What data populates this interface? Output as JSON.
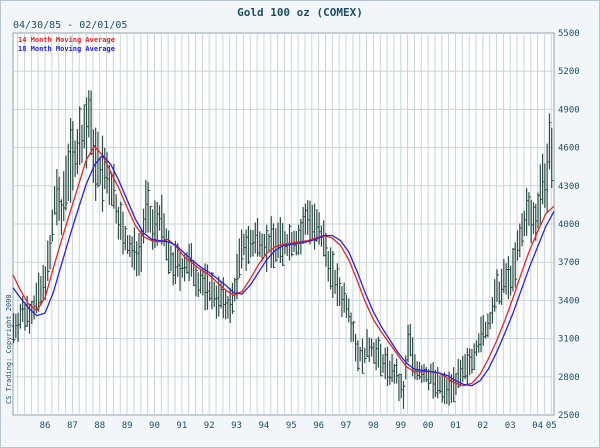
{
  "chart_data": {
    "type": "bar",
    "title": "Gold 100 oz (COMEX)",
    "date_range": "04/30/85 - 02/01/05",
    "copyright": "CS Trading: Copyright 2000",
    "y_axis_position": "right",
    "ylim": [
      2500,
      5500
    ],
    "y_ticks": [
      2500,
      2800,
      3100,
      3400,
      3700,
      4000,
      4300,
      4600,
      4900,
      5200,
      5500
    ],
    "x_range": [
      1985.33,
      2005.1
    ],
    "x_ticks": [
      {
        "label": "86",
        "year": 1986.5
      },
      {
        "label": "87",
        "year": 1987.5
      },
      {
        "label": "88",
        "year": 1988.5
      },
      {
        "label": "89",
        "year": 1989.5
      },
      {
        "label": "90",
        "year": 1990.5
      },
      {
        "label": "91",
        "year": 1991.5
      },
      {
        "label": "92",
        "year": 1992.5
      },
      {
        "label": "93",
        "year": 1993.5
      },
      {
        "label": "94",
        "year": 1994.5
      },
      {
        "label": "95",
        "year": 1995.5
      },
      {
        "label": "96",
        "year": 1996.5
      },
      {
        "label": "97",
        "year": 1997.5
      },
      {
        "label": "98",
        "year": 1998.5
      },
      {
        "label": "99",
        "year": 1999.5
      },
      {
        "label": "00",
        "year": 2000.5
      },
      {
        "label": "01",
        "year": 2001.5
      },
      {
        "label": "02",
        "year": 2002.5
      },
      {
        "label": "03",
        "year": 2003.5
      },
      {
        "label": "04",
        "year": 2004.5
      },
      {
        "label": "05",
        "year": 2005.0
      }
    ],
    "series": [
      {
        "name": "14 Month Moving Average",
        "color": "#ee2222",
        "points": [
          [
            1985.33,
            3600
          ],
          [
            1985.6,
            3480
          ],
          [
            1985.9,
            3370
          ],
          [
            1986.2,
            3320
          ],
          [
            1986.5,
            3420
          ],
          [
            1986.8,
            3650
          ],
          [
            1987.1,
            3870
          ],
          [
            1987.4,
            4080
          ],
          [
            1987.7,
            4290
          ],
          [
            1988.0,
            4500
          ],
          [
            1988.3,
            4610
          ],
          [
            1988.6,
            4540
          ],
          [
            1988.9,
            4410
          ],
          [
            1989.2,
            4280
          ],
          [
            1989.5,
            4130
          ],
          [
            1989.8,
            3990
          ],
          [
            1990.1,
            3900
          ],
          [
            1990.4,
            3870
          ],
          [
            1990.7,
            3860
          ],
          [
            1991.0,
            3880
          ],
          [
            1991.3,
            3820
          ],
          [
            1991.6,
            3740
          ],
          [
            1991.9,
            3690
          ],
          [
            1992.2,
            3640
          ],
          [
            1992.5,
            3600
          ],
          [
            1992.8,
            3540
          ],
          [
            1993.1,
            3480
          ],
          [
            1993.4,
            3440
          ],
          [
            1993.7,
            3470
          ],
          [
            1994.0,
            3570
          ],
          [
            1994.3,
            3680
          ],
          [
            1994.6,
            3770
          ],
          [
            1994.9,
            3820
          ],
          [
            1995.2,
            3840
          ],
          [
            1995.5,
            3850
          ],
          [
            1995.8,
            3860
          ],
          [
            1996.1,
            3870
          ],
          [
            1996.4,
            3890
          ],
          [
            1996.7,
            3910
          ],
          [
            1997.0,
            3890
          ],
          [
            1997.3,
            3830
          ],
          [
            1997.6,
            3720
          ],
          [
            1997.9,
            3560
          ],
          [
            1998.2,
            3390
          ],
          [
            1998.5,
            3250
          ],
          [
            1998.8,
            3150
          ],
          [
            1999.1,
            3060
          ],
          [
            1999.4,
            2970
          ],
          [
            1999.7,
            2880
          ],
          [
            2000.0,
            2840
          ],
          [
            2000.3,
            2840
          ],
          [
            2000.6,
            2840
          ],
          [
            2000.9,
            2830
          ],
          [
            2001.2,
            2790
          ],
          [
            2001.5,
            2750
          ],
          [
            2001.8,
            2730
          ],
          [
            2002.1,
            2750
          ],
          [
            2002.4,
            2820
          ],
          [
            2002.7,
            2940
          ],
          [
            2003.0,
            3080
          ],
          [
            2003.3,
            3240
          ],
          [
            2003.6,
            3420
          ],
          [
            2003.9,
            3610
          ],
          [
            2004.2,
            3790
          ],
          [
            2004.5,
            3940
          ],
          [
            2004.8,
            4080
          ],
          [
            2005.1,
            4140
          ]
        ]
      },
      {
        "name": "18 Month Moving Average",
        "color": "#2222ee",
        "points": [
          [
            1985.33,
            3500
          ],
          [
            1985.6,
            3420
          ],
          [
            1985.9,
            3340
          ],
          [
            1986.2,
            3280
          ],
          [
            1986.5,
            3300
          ],
          [
            1986.8,
            3460
          ],
          [
            1987.1,
            3680
          ],
          [
            1987.4,
            3900
          ],
          [
            1987.7,
            4110
          ],
          [
            1988.0,
            4310
          ],
          [
            1988.3,
            4460
          ],
          [
            1988.6,
            4540
          ],
          [
            1988.9,
            4470
          ],
          [
            1989.2,
            4340
          ],
          [
            1989.5,
            4190
          ],
          [
            1989.8,
            4040
          ],
          [
            1990.1,
            3930
          ],
          [
            1990.4,
            3880
          ],
          [
            1990.7,
            3870
          ],
          [
            1991.0,
            3860
          ],
          [
            1991.3,
            3830
          ],
          [
            1991.6,
            3770
          ],
          [
            1991.9,
            3710
          ],
          [
            1992.2,
            3660
          ],
          [
            1992.5,
            3620
          ],
          [
            1992.8,
            3570
          ],
          [
            1993.1,
            3520
          ],
          [
            1993.4,
            3460
          ],
          [
            1993.7,
            3450
          ],
          [
            1994.0,
            3520
          ],
          [
            1994.3,
            3620
          ],
          [
            1994.6,
            3720
          ],
          [
            1994.9,
            3790
          ],
          [
            1995.2,
            3830
          ],
          [
            1995.5,
            3840
          ],
          [
            1995.8,
            3850
          ],
          [
            1996.1,
            3860
          ],
          [
            1996.4,
            3880
          ],
          [
            1996.7,
            3910
          ],
          [
            1997.0,
            3910
          ],
          [
            1997.3,
            3870
          ],
          [
            1997.6,
            3780
          ],
          [
            1997.9,
            3630
          ],
          [
            1998.2,
            3460
          ],
          [
            1998.5,
            3310
          ],
          [
            1998.8,
            3190
          ],
          [
            1999.1,
            3090
          ],
          [
            1999.4,
            2990
          ],
          [
            1999.7,
            2910
          ],
          [
            2000.0,
            2860
          ],
          [
            2000.3,
            2850
          ],
          [
            2000.6,
            2840
          ],
          [
            2000.9,
            2830
          ],
          [
            2001.2,
            2810
          ],
          [
            2001.5,
            2770
          ],
          [
            2001.8,
            2740
          ],
          [
            2002.1,
            2730
          ],
          [
            2002.4,
            2770
          ],
          [
            2002.7,
            2860
          ],
          [
            2003.0,
            2990
          ],
          [
            2003.3,
            3140
          ],
          [
            2003.6,
            3300
          ],
          [
            2003.9,
            3480
          ],
          [
            2004.2,
            3660
          ],
          [
            2004.5,
            3820
          ],
          [
            2004.8,
            3980
          ],
          [
            2005.1,
            4100
          ]
        ]
      },
      {
        "name": "Price",
        "color": "#2b4d44",
        "anchors": [
          [
            1985.33,
            3180
          ],
          [
            1985.7,
            3300
          ],
          [
            1986.0,
            3320
          ],
          [
            1986.4,
            3480
          ],
          [
            1986.7,
            3780
          ],
          [
            1986.9,
            4280
          ],
          [
            1987.1,
            4050
          ],
          [
            1987.3,
            4450
          ],
          [
            1987.6,
            4550
          ],
          [
            1987.9,
            4700
          ],
          [
            1988.1,
            4820
          ],
          [
            1988.4,
            4430
          ],
          [
            1988.7,
            4380
          ],
          [
            1989.0,
            4250
          ],
          [
            1989.2,
            4050
          ],
          [
            1989.4,
            3880
          ],
          [
            1989.7,
            3770
          ],
          [
            1990.0,
            3800
          ],
          [
            1990.2,
            4180
          ],
          [
            1990.4,
            3950
          ],
          [
            1990.7,
            4080
          ],
          [
            1991.0,
            3750
          ],
          [
            1991.2,
            3680
          ],
          [
            1991.5,
            3660
          ],
          [
            1991.8,
            3680
          ],
          [
            1992.1,
            3560
          ],
          [
            1992.4,
            3500
          ],
          [
            1992.7,
            3450
          ],
          [
            1993.0,
            3400
          ],
          [
            1993.3,
            3340
          ],
          [
            1993.6,
            3700
          ],
          [
            1993.8,
            3850
          ],
          [
            1994.0,
            3820
          ],
          [
            1994.3,
            3890
          ],
          [
            1994.6,
            3830
          ],
          [
            1994.9,
            3860
          ],
          [
            1995.2,
            3840
          ],
          [
            1995.5,
            3860
          ],
          [
            1995.8,
            3870
          ],
          [
            1996.1,
            4080
          ],
          [
            1996.4,
            3950
          ],
          [
            1996.7,
            3850
          ],
          [
            1997.0,
            3600
          ],
          [
            1997.3,
            3450
          ],
          [
            1997.6,
            3350
          ],
          [
            1997.9,
            3000
          ],
          [
            1998.1,
            2950
          ],
          [
            1998.4,
            3050
          ],
          [
            1998.7,
            2950
          ],
          [
            1999.0,
            2880
          ],
          [
            1999.3,
            2820
          ],
          [
            1999.6,
            2650
          ],
          [
            1999.8,
            3150
          ],
          [
            2000.0,
            2880
          ],
          [
            2000.3,
            2820
          ],
          [
            2000.6,
            2800
          ],
          [
            2000.9,
            2720
          ],
          [
            2001.2,
            2700
          ],
          [
            2001.5,
            2770
          ],
          [
            2001.8,
            2820
          ],
          [
            2002.1,
            2960
          ],
          [
            2002.4,
            3100
          ],
          [
            2002.7,
            3200
          ],
          [
            2003.0,
            3450
          ],
          [
            2003.3,
            3550
          ],
          [
            2003.6,
            3620
          ],
          [
            2003.9,
            3900
          ],
          [
            2004.1,
            4100
          ],
          [
            2004.4,
            4000
          ],
          [
            2004.6,
            4280
          ],
          [
            2004.8,
            4350
          ],
          [
            2004.95,
            4560
          ],
          [
            2005.1,
            4250
          ]
        ]
      }
    ]
  }
}
